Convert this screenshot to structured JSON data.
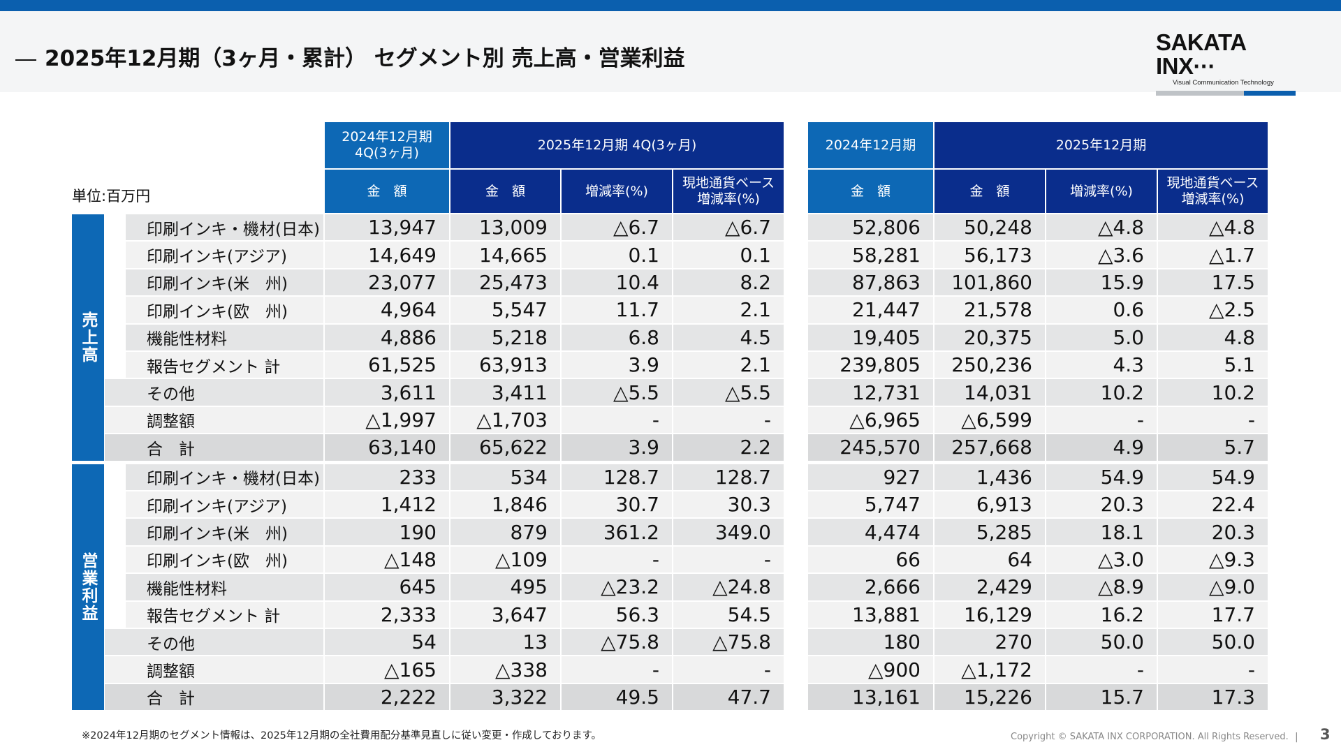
{
  "title": "2025年12月期（3ヶ月・累計） セグメント別 売上高・営業利益",
  "logo": {
    "name": "SAKATA INX",
    "tagline": "Visual Communication Technology"
  },
  "unit": "単位:百万円",
  "colors": {
    "accent_light": "#0d68b5",
    "accent_dark": "#0a2d8c",
    "row_gray": "#e4e5e6",
    "row_light": "#f2f2f2",
    "row_total": "#d8d9da"
  },
  "headers": {
    "q4_prev": "2024年12月期\n4Q(3ヶ月)",
    "q4_curr": "2025年12月期 4Q(3ヶ月)",
    "fy_prev": "2024年12月期",
    "fy_curr": "2025年12月期",
    "amount": "金　額",
    "change": "増減率(%)",
    "local_change": "現地通貨ベース\n増減率(%)"
  },
  "sections": [
    {
      "label": "売上高",
      "rows": [
        {
          "label": "印刷インキ・機材(日本)",
          "values": [
            "13,947",
            "13,009",
            "△6.7",
            "△6.7",
            "52,806",
            "50,248",
            "△4.8",
            "△4.8"
          ]
        },
        {
          "label": "印刷インキ(アジア)",
          "values": [
            "14,649",
            "14,665",
            "0.1",
            "0.1",
            "58,281",
            "56,173",
            "△3.6",
            "△1.7"
          ]
        },
        {
          "label": "印刷インキ(米　州)",
          "values": [
            "23,077",
            "25,473",
            "10.4",
            "8.2",
            "87,863",
            "101,860",
            "15.9",
            "17.5"
          ]
        },
        {
          "label": "印刷インキ(欧　州)",
          "values": [
            "4,964",
            "5,547",
            "11.7",
            "2.1",
            "21,447",
            "21,578",
            "0.6",
            "△2.5"
          ]
        },
        {
          "label": "機能性材料",
          "values": [
            "4,886",
            "5,218",
            "6.8",
            "4.5",
            "19,405",
            "20,375",
            "5.0",
            "4.8"
          ]
        },
        {
          "label": "報告セグメント 計",
          "values": [
            "61,525",
            "63,913",
            "3.9",
            "2.1",
            "239,805",
            "250,236",
            "4.3",
            "5.1"
          ]
        },
        {
          "label": "その他",
          "values": [
            "3,611",
            "3,411",
            "△5.5",
            "△5.5",
            "12,731",
            "14,031",
            "10.2",
            "10.2"
          ]
        },
        {
          "label": "調整額",
          "values": [
            "△1,997",
            "△1,703",
            "-",
            "-",
            "△6,965",
            "△6,599",
            "-",
            "-"
          ]
        },
        {
          "label": "合　計",
          "values": [
            "63,140",
            "65,622",
            "3.9",
            "2.2",
            "245,570",
            "257,668",
            "4.9",
            "5.7"
          ]
        }
      ]
    },
    {
      "label": "営業利益",
      "rows": [
        {
          "label": "印刷インキ・機材(日本)",
          "values": [
            "233",
            "534",
            "128.7",
            "128.7",
            "927",
            "1,436",
            "54.9",
            "54.9"
          ]
        },
        {
          "label": "印刷インキ(アジア)",
          "values": [
            "1,412",
            "1,846",
            "30.7",
            "30.3",
            "5,747",
            "6,913",
            "20.3",
            "22.4"
          ]
        },
        {
          "label": "印刷インキ(米　州)",
          "values": [
            "190",
            "879",
            "361.2",
            "349.0",
            "4,474",
            "5,285",
            "18.1",
            "20.3"
          ]
        },
        {
          "label": "印刷インキ(欧　州)",
          "values": [
            "△148",
            "△109",
            "-",
            "-",
            "66",
            "64",
            "△3.0",
            "△9.3"
          ]
        },
        {
          "label": "機能性材料",
          "values": [
            "645",
            "495",
            "△23.2",
            "△24.8",
            "2,666",
            "2,429",
            "△8.9",
            "△9.0"
          ]
        },
        {
          "label": "報告セグメント 計",
          "values": [
            "2,333",
            "3,647",
            "56.3",
            "54.5",
            "13,881",
            "16,129",
            "16.2",
            "17.7"
          ]
        },
        {
          "label": "その他",
          "values": [
            "54",
            "13",
            "△75.8",
            "△75.8",
            "180",
            "270",
            "50.0",
            "50.0"
          ]
        },
        {
          "label": "調整額",
          "values": [
            "△165",
            "△338",
            "-",
            "-",
            "△900",
            "△1,172",
            "-",
            "-"
          ]
        },
        {
          "label": "合　計",
          "values": [
            "2,222",
            "3,322",
            "49.5",
            "47.7",
            "13,161",
            "15,226",
            "15.7",
            "17.3"
          ]
        }
      ]
    }
  ],
  "footnote": "※2024年12月期のセグメント情報は、2025年12月期の全社費用配分基準見直しに従い変更・作成しております。",
  "copyright": "Copyright © SAKATA INX CORPORATION. All Rights Reserved.",
  "page_number": "3"
}
